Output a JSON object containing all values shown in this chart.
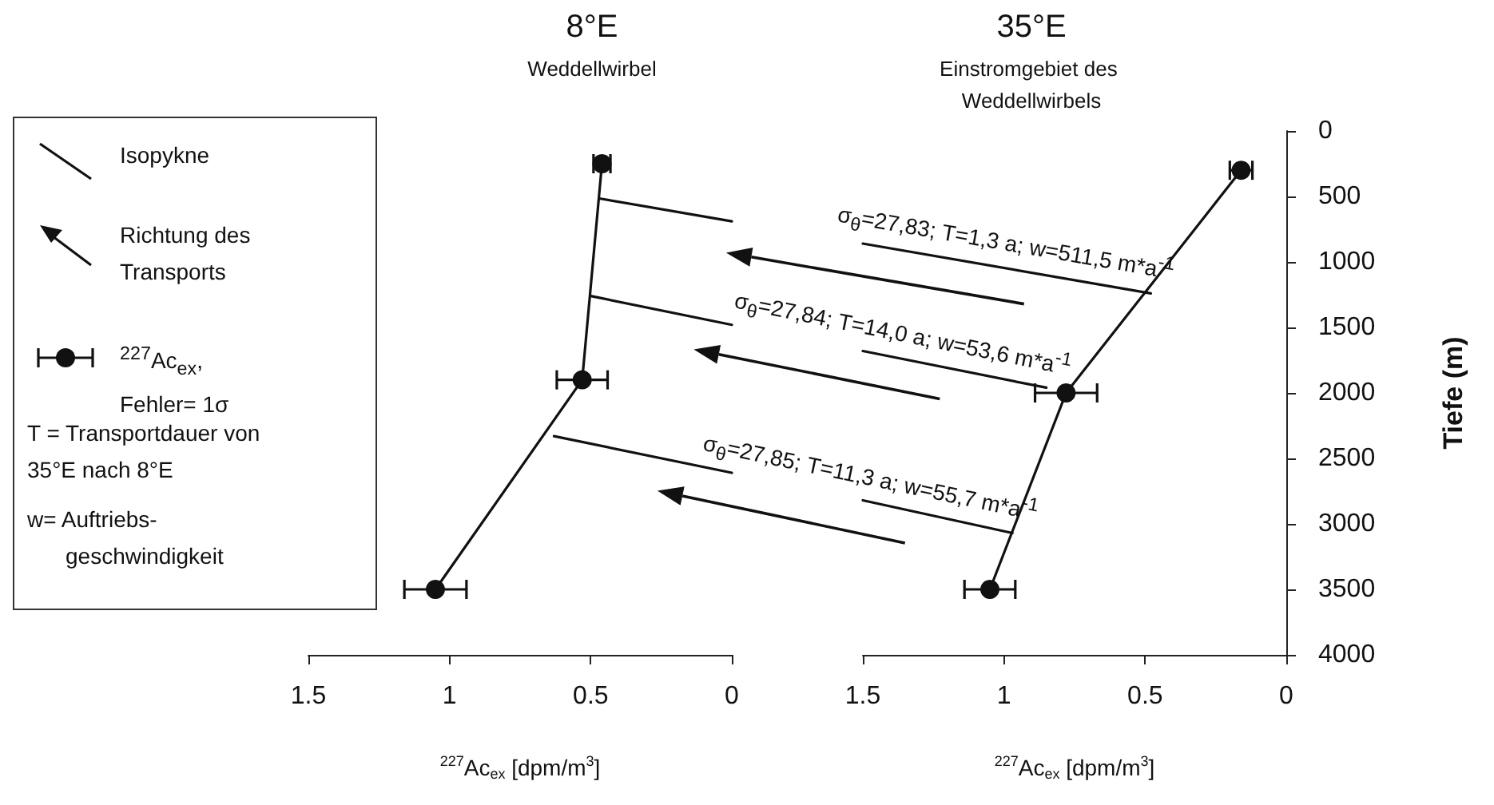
{
  "chart_data": [
    {
      "type": "line",
      "title": "8°E",
      "subtitle": "Weddellwirbel",
      "xlabel": "$^{227}$Ac$_{ex}$ [dpm/m$^{3}$]",
      "xlim": [
        1.5,
        0
      ],
      "xticks": [
        1.5,
        1,
        0.5,
        0
      ],
      "ylim": [
        4000,
        0
      ],
      "yticks": [
        0,
        500,
        1000,
        1500,
        2000,
        2500,
        3000,
        3500,
        4000
      ],
      "tick_labels": "x",
      "marker": "circle",
      "line_style": "solid",
      "annotations": [
        "Isopykne",
        "Richtung des Transports",
        "$^{227}$Ac$_{ex}$, Fehler= 1σ",
        "T = Transportdauer von 35°E nach 8°E",
        "w= Auftriebs-geschwindigkeit"
      ],
      "series": [
        {
          "color": "#111111",
          "x": [
            0.46,
            0.53,
            1.05
          ],
          "values": [
            250,
            1900,
            3500
          ],
          "xerrors": [
            0.03,
            0.09,
            0.11
          ]
        },
        {
          "color": "#111111",
          "marker": "none",
          "x": [
            0.47,
            0
          ],
          "values": [
            515,
            690
          ]
        },
        {
          "color": "#111111",
          "marker": "none",
          "x": [
            0.5,
            0
          ],
          "values": [
            1260,
            1480
          ]
        },
        {
          "color": "#111111",
          "marker": "none",
          "x": [
            0.63,
            0
          ],
          "values": [
            2330,
            2610
          ]
        }
      ]
    },
    {
      "type": "line",
      "title": "35°E",
      "subtitle": "Einstromgebiet des Weddellwirbels",
      "xlabel": "$^{227}$Ac$_{ex}$ [dpm/m$^{3}$]",
      "ylabel": "Tiefe (m)",
      "xlim": [
        1.5,
        0
      ],
      "xticks": [
        1.5,
        1,
        0.5,
        0
      ],
      "ylim": [
        4000,
        0
      ],
      "yticks": [
        0,
        500,
        1000,
        1500,
        2000,
        2500,
        3000,
        3500,
        4000
      ],
      "marker": "circle",
      "line_style": "solid",
      "annotations": [
        {
          "text": "σ$_{θ}$=27,83; T=1,3 a; w=511,5 m*a$^{-1}$",
          "x": 0.48,
          "y": 1240
        },
        {
          "text": "σ$_{θ}$=27,84; T=14,0 a; w=53,6 m*a$^{-1}$",
          "x": 0.85,
          "y": 1960
        },
        {
          "text": "σ$_{θ}$=27,85; T=11,3 a; w=55,7 m*a$^{-1}$",
          "x": 0.97,
          "y": 3070
        }
      ],
      "series": [
        {
          "color": "#111111",
          "x": [
            0.16,
            0.78,
            1.05
          ],
          "values": [
            300,
            2000,
            3500
          ],
          "xerrors": [
            0.04,
            0.11,
            0.09
          ]
        },
        {
          "color": "#111111",
          "marker": "none",
          "x": [
            1.5,
            0.48
          ],
          "values": [
            860,
            1240
          ]
        },
        {
          "color": "#111111",
          "marker": "none",
          "x": [
            1.5,
            0.85
          ],
          "values": [
            1680,
            1960
          ]
        },
        {
          "color": "#111111",
          "marker": "none",
          "x": [
            1.5,
            0.97
          ],
          "values": [
            2820,
            3070
          ]
        }
      ]
    }
  ]
}
